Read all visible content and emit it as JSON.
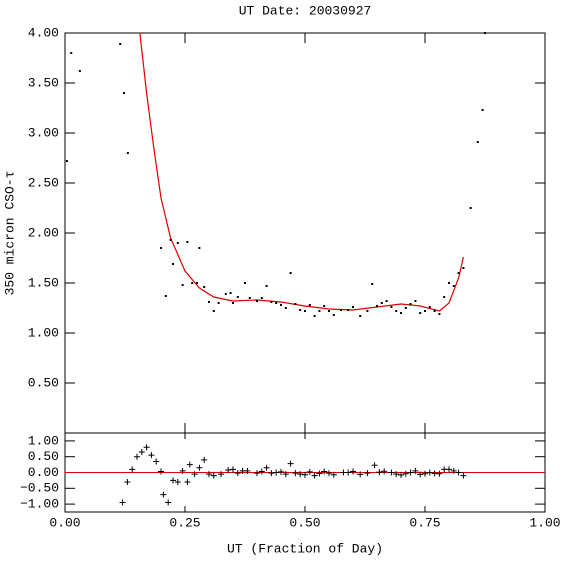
{
  "chart_data": [
    {
      "type": "scatter",
      "title": "UT Date: 20030927",
      "y_label": "350 micron CSO-τ",
      "color": "#000000",
      "x": [
        0.004,
        0.013,
        0.031,
        0.115,
        0.123,
        0.131,
        0.2,
        0.21,
        0.22,
        0.225,
        0.235,
        0.245,
        0.255,
        0.265,
        0.275,
        0.28,
        0.29,
        0.3,
        0.31,
        0.32,
        0.335,
        0.345,
        0.35,
        0.36,
        0.375,
        0.385,
        0.4,
        0.41,
        0.42,
        0.43,
        0.44,
        0.45,
        0.46,
        0.47,
        0.48,
        0.49,
        0.5,
        0.51,
        0.52,
        0.53,
        0.54,
        0.55,
        0.56,
        0.575,
        0.59,
        0.6,
        0.615,
        0.63,
        0.64,
        0.65,
        0.66,
        0.67,
        0.68,
        0.69,
        0.7,
        0.71,
        0.72,
        0.73,
        0.74,
        0.75,
        0.76,
        0.77,
        0.78,
        0.79,
        0.8,
        0.81,
        0.82,
        0.83,
        0.845,
        0.86,
        0.87,
        0.875
      ],
      "values": [
        2.72,
        3.8,
        3.62,
        3.89,
        3.4,
        2.8,
        1.85,
        1.37,
        1.93,
        1.69,
        1.9,
        1.48,
        1.91,
        1.5,
        1.5,
        1.85,
        1.46,
        1.31,
        1.22,
        1.3,
        1.39,
        1.4,
        1.3,
        1.36,
        1.5,
        1.35,
        1.32,
        1.35,
        1.47,
        1.31,
        1.3,
        1.28,
        1.25,
        1.6,
        1.29,
        1.23,
        1.22,
        1.28,
        1.17,
        1.22,
        1.27,
        1.22,
        1.18,
        1.23,
        1.23,
        1.26,
        1.17,
        1.22,
        1.49,
        1.27,
        1.3,
        1.32,
        1.26,
        1.22,
        1.2,
        1.25,
        1.29,
        1.32,
        1.2,
        1.22,
        1.26,
        1.22,
        1.19,
        1.36,
        1.5,
        1.47,
        1.6,
        1.65,
        2.25,
        2.91,
        3.23,
        4.0
      ],
      "fit": {
        "type": "line",
        "color": "#e00000",
        "x": [
          0.156,
          0.17,
          0.185,
          0.2,
          0.22,
          0.25,
          0.28,
          0.31,
          0.35,
          0.4,
          0.45,
          0.5,
          0.55,
          0.6,
          0.65,
          0.7,
          0.74,
          0.78,
          0.8,
          0.82,
          0.83
        ],
        "values": [
          4.0,
          3.4,
          2.85,
          2.35,
          1.95,
          1.62,
          1.45,
          1.36,
          1.32,
          1.33,
          1.31,
          1.27,
          1.24,
          1.23,
          1.26,
          1.29,
          1.27,
          1.22,
          1.3,
          1.55,
          1.76
        ]
      },
      "xlim": [
        0,
        1
      ],
      "xticks": [
        0,
        0.25,
        0.5,
        0.75,
        1
      ],
      "ylim": [
        0,
        4
      ],
      "yticks": [
        {
          "value": 0.5,
          "label": "0.50"
        },
        {
          "value": 1,
          "label": "1.00"
        },
        {
          "value": 1.5,
          "label": "1.50"
        },
        {
          "value": 2,
          "label": "2.00"
        },
        {
          "value": 2.5,
          "label": "2.50"
        },
        {
          "value": 3,
          "label": "3.00"
        },
        {
          "value": 3.5,
          "label": "3.50"
        },
        {
          "value": 4,
          "label": "4.00"
        }
      ]
    },
    {
      "type": "scatter",
      "marker": "+",
      "x_label": "UT (Fraction of Day)",
      "color": "#000000",
      "x": [
        0.12,
        0.13,
        0.14,
        0.15,
        0.16,
        0.17,
        0.18,
        0.19,
        0.2,
        0.205,
        0.215,
        0.225,
        0.235,
        0.245,
        0.255,
        0.26,
        0.27,
        0.28,
        0.29,
        0.3,
        0.31,
        0.325,
        0.34,
        0.35,
        0.36,
        0.37,
        0.38,
        0.4,
        0.41,
        0.42,
        0.43,
        0.44,
        0.45,
        0.46,
        0.47,
        0.48,
        0.49,
        0.5,
        0.51,
        0.52,
        0.53,
        0.54,
        0.55,
        0.56,
        0.58,
        0.59,
        0.6,
        0.615,
        0.63,
        0.645,
        0.655,
        0.665,
        0.68,
        0.69,
        0.7,
        0.71,
        0.72,
        0.73,
        0.74,
        0.75,
        0.76,
        0.77,
        0.78,
        0.79,
        0.8,
        0.81,
        0.82,
        0.83
      ],
      "values": [
        -0.95,
        -0.3,
        0.1,
        0.5,
        0.65,
        0.8,
        0.55,
        0.35,
        0.03,
        -0.7,
        -0.95,
        -0.25,
        -0.3,
        0.05,
        -0.3,
        0.25,
        -0.05,
        0.15,
        0.4,
        -0.05,
        -0.1,
        -0.05,
        0.08,
        0.1,
        -0.02,
        0.05,
        0.05,
        -0.02,
        0.03,
        0.15,
        -0.02,
        0,
        0.02,
        -0.05,
        0.28,
        -0.02,
        -0.05,
        -0.07,
        0.02,
        -0.1,
        -0.03,
        0.03,
        -0.02,
        -0.07,
        0,
        0,
        0.03,
        -0.06,
        -0.02,
        0.23,
        0.01,
        0.04,
        0,
        -0.05,
        -0.08,
        -0.04,
        0,
        0.05,
        -0.06,
        -0.04,
        0,
        -0.03,
        -0.04,
        0.1,
        0.1,
        0.05,
        0,
        -0.1
      ],
      "hline": 0,
      "hline_color": "#e00000",
      "xlim": [
        0,
        1
      ],
      "xticks": [
        {
          "value": 0,
          "label": "0.00"
        },
        {
          "value": 0.25,
          "label": "0.25"
        },
        {
          "value": 0.5,
          "label": "0.50"
        },
        {
          "value": 0.75,
          "label": "0.75"
        },
        {
          "value": 1,
          "label": "1.00"
        }
      ],
      "ylim": [
        -1.25,
        1.25
      ],
      "yticks": [
        {
          "value": -1,
          "label": "−1.00"
        },
        {
          "value": -0.5,
          "label": "−0.50"
        },
        {
          "value": 0,
          "label": "0.00"
        },
        {
          "value": 0.5,
          "label": "0.50"
        },
        {
          "value": 1,
          "label": "1.00"
        }
      ]
    }
  ]
}
